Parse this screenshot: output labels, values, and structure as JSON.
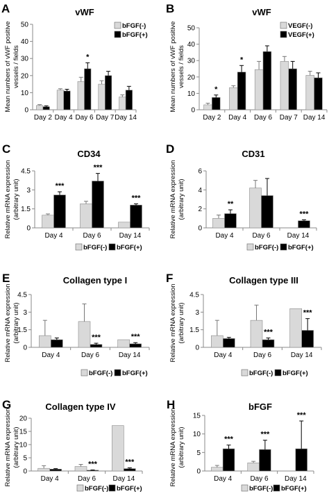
{
  "figure": {
    "panels": [
      {
        "letter": "A",
        "title": "vWF",
        "ylabel_lines": [
          "Mean numbers of vWF positive",
          "vessels / fields"
        ],
        "legend": [
          "bFGF(-)",
          "bFGF(+)"
        ],
        "legend_position": "top-right",
        "yticks": [
          "0",
          "10",
          "20",
          "30",
          "40",
          "50"
        ]
      },
      {
        "letter": "B",
        "title": "vWF",
        "ylabel_lines": [
          "Mean numbers of vWF positive",
          "vessels / fields"
        ],
        "legend": [
          "VEGF(-)",
          "VEGF(+)"
        ],
        "legend_position": "top-right",
        "yticks": [
          "0",
          "10",
          "20",
          "30",
          "40",
          "50"
        ]
      },
      {
        "letter": "C",
        "title": "CD34",
        "ylabel_lines": [
          "Relative mRNA expression",
          "(arbitrary unit)"
        ],
        "legend": [
          "bFGF(-)",
          "bFGF(+)"
        ],
        "legend_position": "bottom",
        "yticks": [
          "0",
          "1.5",
          "3",
          "4.5"
        ]
      },
      {
        "letter": "D",
        "title": "CD31",
        "ylabel_lines": [
          "Relative mRNA expression",
          "(arbitrary unit)"
        ],
        "legend": [
          "bFGF(-)",
          "bFGF(+)"
        ],
        "legend_position": "bottom",
        "yticks": [
          "0",
          "2",
          "4",
          "6"
        ]
      },
      {
        "letter": "E",
        "title": "Collagen type I",
        "ylabel_lines": [
          "Relative mRNA expression",
          "(arbitrary unit)"
        ],
        "legend": [
          "bFGF(-)",
          "bFGF(+)"
        ],
        "legend_position": "bottom",
        "yticks": [
          "0",
          "1.5",
          "3",
          "4.5"
        ]
      },
      {
        "letter": "F",
        "title": "Collagen type III",
        "ylabel_lines": [
          "Relative mRNA expression",
          "(arbitrary unit)"
        ],
        "legend": [
          "bFGF(-)",
          "bFGF(+)"
        ],
        "legend_position": "bottom",
        "yticks": [
          "0",
          "1.5",
          "3",
          "4.5"
        ]
      },
      {
        "letter": "G",
        "title": "Collagen type IV",
        "ylabel_lines": [
          "Relative mRNA expression",
          "(arbitrary unit)"
        ],
        "legend": [
          "bFGF(-)",
          "bFGF(+)"
        ],
        "legend_position": "bottom",
        "yticks": [
          "0",
          "5",
          "10",
          "15",
          "20"
        ]
      },
      {
        "letter": "H",
        "title": "bFGF",
        "ylabel_lines": [
          "Relative mRNA expression",
          "(arbitrary unit)"
        ],
        "legend": [
          "bFGF(-)",
          "bFGF(+)"
        ],
        "legend_position": "bottom",
        "yticks": [
          "0",
          "5",
          "10",
          "15"
        ]
      }
    ],
    "colors": {
      "minus": "#d9d9d9",
      "plus": "#000000",
      "axis": "#888888",
      "text": "#000000"
    }
  },
  "chart_data": [
    {
      "type": "bar",
      "title": "vWF",
      "categories": [
        "Day 2",
        "Day 4",
        "Day 6",
        "Day 7",
        "Day 14"
      ],
      "ylim": [
        0,
        50
      ],
      "series": [
        {
          "name": "bFGF(-)",
          "values": [
            2.5,
            11.5,
            16.5,
            15,
            7.5
          ],
          "errors": [
            0.5,
            0.8,
            2.5,
            2,
            1.2
          ]
        },
        {
          "name": "bFGF(+)",
          "values": [
            1.8,
            11,
            24,
            20,
            11.5
          ],
          "errors": [
            0.5,
            1,
            3.5,
            2.5,
            2.2
          ]
        }
      ],
      "significance": [
        "",
        "",
        "*",
        "",
        ""
      ]
    },
    {
      "type": "bar",
      "title": "vWF",
      "categories": [
        "Day 2",
        "Day 4",
        "Day 6",
        "Day 7",
        "Day 14"
      ],
      "ylim": [
        0,
        50
      ],
      "series": [
        {
          "name": "VEGF(-)",
          "values": [
            3,
            13.5,
            24.5,
            29.5,
            21
          ],
          "errors": [
            1,
            1.2,
            5,
            3,
            2.5
          ]
        },
        {
          "name": "VEGF(+)",
          "values": [
            7.5,
            23,
            35.5,
            25,
            19.5
          ],
          "errors": [
            1.5,
            4,
            3.5,
            4.5,
            3
          ]
        }
      ],
      "significance": [
        "*",
        "*",
        "",
        "",
        ""
      ]
    },
    {
      "type": "bar",
      "title": "CD34",
      "categories": [
        "Day 4",
        "Day 6",
        "Day 14"
      ],
      "ylim": [
        0,
        4.5
      ],
      "series": [
        {
          "name": "bFGF(-)",
          "values": [
            1.0,
            1.9,
            0.45
          ],
          "errors": [
            0.1,
            0.2,
            0
          ]
        },
        {
          "name": "bFGF(+)",
          "values": [
            2.6,
            3.7,
            1.8
          ],
          "errors": [
            0.25,
            0.6,
            0.1
          ]
        }
      ],
      "significance": [
        "***",
        "***",
        "***"
      ]
    },
    {
      "type": "bar",
      "title": "CD31",
      "categories": [
        "Day 4",
        "Day 6",
        "Day 14"
      ],
      "ylim": [
        0,
        6
      ],
      "series": [
        {
          "name": "bFGF(-)",
          "values": [
            1.0,
            4.2,
            0
          ],
          "errors": [
            0.35,
            0.8,
            0
          ]
        },
        {
          "name": "bFGF(+)",
          "values": [
            1.5,
            3.4,
            0.75
          ],
          "errors": [
            0.4,
            1.8,
            0.1
          ]
        }
      ],
      "significance": [
        "**",
        "",
        "***"
      ]
    },
    {
      "type": "bar",
      "title": "Collagen type I",
      "categories": [
        "Day 4",
        "Day 6",
        "Day 14"
      ],
      "ylim": [
        0,
        4.5
      ],
      "series": [
        {
          "name": "bFGF(-)",
          "values": [
            1.0,
            2.2,
            0.65
          ],
          "errors": [
            1.3,
            1.5,
            0
          ]
        },
        {
          "name": "bFGF(+)",
          "values": [
            0.65,
            0.25,
            0.3
          ],
          "errors": [
            0.15,
            0.1,
            0.1
          ]
        }
      ],
      "significance": [
        "",
        "***",
        "***"
      ]
    },
    {
      "type": "bar",
      "title": "Collagen type III",
      "categories": [
        "Day 4",
        "Day 6",
        "Day 14"
      ],
      "ylim": [
        0,
        4.5
      ],
      "series": [
        {
          "name": "bFGF(-)",
          "values": [
            1.0,
            2.3,
            3.3
          ],
          "errors": [
            1.3,
            1.3,
            0
          ]
        },
        {
          "name": "bFGF(+)",
          "values": [
            0.75,
            0.65,
            1.45
          ],
          "errors": [
            0.1,
            0.15,
            1.0
          ]
        }
      ],
      "significance": [
        "",
        "***",
        "***"
      ]
    },
    {
      "type": "bar",
      "title": "Collagen type IV",
      "categories": [
        "Day 4",
        "Day 6",
        "Day 14"
      ],
      "ylim": [
        0,
        20
      ],
      "series": [
        {
          "name": "bFGF(-)",
          "values": [
            1.0,
            1.7,
            17.2
          ],
          "errors": [
            1.0,
            0.8,
            0
          ]
        },
        {
          "name": "bFGF(+)",
          "values": [
            0.7,
            0.3,
            0.9
          ],
          "errors": [
            0.2,
            0.1,
            0.3
          ]
        }
      ],
      "significance": [
        "",
        "***",
        "***"
      ]
    },
    {
      "type": "bar",
      "title": "bFGF",
      "categories": [
        "Day 4",
        "Day 6",
        "Day 14"
      ],
      "ylim": [
        0,
        15
      ],
      "series": [
        {
          "name": "bFGF(-)",
          "values": [
            1.0,
            2.2,
            0
          ],
          "errors": [
            0.5,
            0.4,
            0
          ]
        },
        {
          "name": "bFGF(+)",
          "values": [
            6.0,
            5.8,
            6.0
          ],
          "errors": [
            1.0,
            2.5,
            7.5
          ]
        }
      ],
      "significance": [
        "***",
        "***",
        "***"
      ]
    }
  ]
}
